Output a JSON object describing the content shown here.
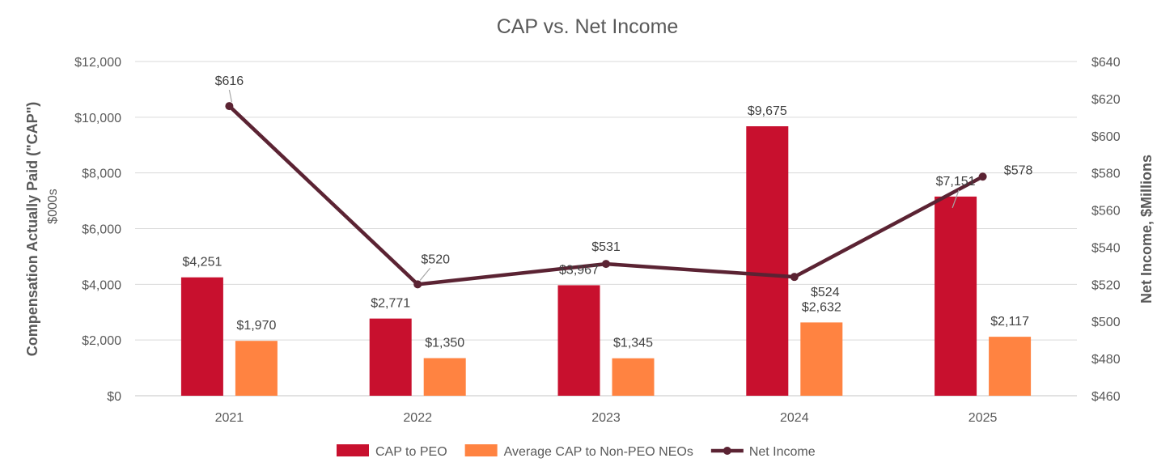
{
  "chart_data": {
    "type": "bar",
    "title": "CAP vs. Net Income",
    "categories": [
      "2021",
      "2022",
      "2023",
      "2024",
      "2025"
    ],
    "series": [
      {
        "name": "CAP to PEO",
        "kind": "bar",
        "axis": "left",
        "color": "#c8102e",
        "values": [
          4251,
          2771,
          3967,
          9675,
          7151
        ],
        "labels": [
          "$4,251",
          "$2,771",
          "$3,967",
          "$9,675",
          "$7,151"
        ]
      },
      {
        "name": "Average CAP to Non-PEO NEOs",
        "kind": "bar",
        "axis": "left",
        "color": "#ff8341",
        "values": [
          1970,
          1350,
          1345,
          2632,
          2117
        ],
        "labels": [
          "$1,970",
          "$1,350",
          "$1,345",
          "$2,632",
          "$2,117"
        ]
      },
      {
        "name": "Net Income",
        "kind": "line",
        "axis": "right",
        "color": "#5b2333",
        "values": [
          616,
          520,
          531,
          524,
          578
        ],
        "labels": [
          "$616",
          "$520",
          "$531",
          "$524",
          "$578"
        ]
      }
    ],
    "ylabel": "Compensation Actually Paid (\"CAP\")",
    "ylabel_sub": "$000s",
    "y2label": "Net Income, $Millions",
    "ylim": [
      0,
      12000
    ],
    "y2lim": [
      460,
      640
    ],
    "yticks": [
      "$0",
      "$2,000",
      "$4,000",
      "$6,000",
      "$8,000",
      "$10,000",
      "$12,000"
    ],
    "y2ticks": [
      "$460",
      "$480",
      "$500",
      "$520",
      "$540",
      "$560",
      "$580",
      "$600",
      "$620",
      "$640"
    ],
    "grid": true,
    "legend_position": "bottom"
  }
}
